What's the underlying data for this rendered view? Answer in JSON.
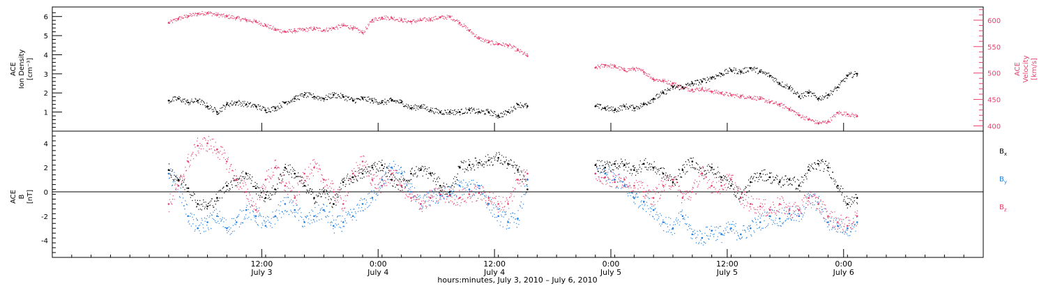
{
  "figure": {
    "x_axis_title": "hours:minutes,  July  3, 2010 – July  6, 2010",
    "x_ticks": [
      {
        "t": 21.6,
        "time": "12:00",
        "date": "July 3"
      },
      {
        "t": 33.6,
        "time": "0:00",
        "date": "July 4"
      },
      {
        "t": 45.6,
        "time": "12:00",
        "date": "July 4"
      },
      {
        "t": 57.6,
        "time": "0:00",
        "date": "July 5"
      },
      {
        "t": 69.6,
        "time": "12:00",
        "date": "July 5"
      },
      {
        "t": 81.6,
        "time": "0:00",
        "date": "July 6"
      }
    ]
  },
  "chart_data": [
    {
      "type": "scatter",
      "panel": "top",
      "ylabel_lines": [
        "ACE",
        "Ion Density",
        "[cm⁻³]"
      ],
      "ylim": [
        0,
        6.5
      ],
      "yticks": [
        1,
        2,
        3,
        4,
        5,
        6
      ],
      "y2label_lines": [
        "ACE",
        "Velocity",
        "[km/s]"
      ],
      "y2lim": [
        390,
        625
      ],
      "y2ticks": [
        400,
        450,
        500,
        550,
        600
      ],
      "xlim": [
        0,
        96
      ],
      "colors": {
        "density": "#000000",
        "velocity": "#e8406e"
      },
      "data_gap": [
        49,
        56
      ],
      "series": [
        {
          "key": "density",
          "axis": "left",
          "x": [
            12,
            13,
            14,
            15,
            16,
            17,
            18,
            19,
            20,
            21,
            22,
            23,
            24,
            25,
            26,
            27,
            28,
            29,
            30,
            31,
            32,
            33,
            34,
            35,
            36,
            37,
            38,
            39,
            40,
            41,
            42,
            43,
            44,
            45,
            46,
            47,
            48,
            49,
            56,
            57,
            58,
            59,
            60,
            61,
            62,
            63,
            64,
            65,
            66,
            67,
            68,
            69,
            70,
            71,
            72,
            73,
            74,
            75,
            76,
            77,
            78,
            79,
            80,
            81,
            82,
            83
          ],
          "y": [
            1.6,
            1.7,
            1.5,
            1.6,
            1.3,
            1.0,
            1.4,
            1.5,
            1.4,
            1.3,
            1.1,
            1.2,
            1.5,
            1.7,
            1.9,
            1.8,
            1.7,
            1.9,
            1.8,
            1.6,
            1.7,
            1.6,
            1.5,
            1.6,
            1.5,
            1.2,
            1.3,
            1.1,
            1.0,
            1.0,
            1.0,
            1.1,
            1.0,
            1.0,
            0.8,
            1.0,
            1.4,
            1.3,
            1.3,
            1.2,
            1.1,
            1.3,
            1.2,
            1.4,
            1.7,
            2.0,
            2.3,
            2.3,
            2.5,
            2.6,
            2.8,
            3.0,
            3.2,
            3.1,
            3.3,
            3.1,
            2.9,
            2.5,
            2.3,
            1.8,
            2.0,
            1.7,
            1.9,
            2.3,
            2.9,
            3.0
          ]
        },
        {
          "key": "velocity",
          "axis": "right",
          "x": [
            12,
            13,
            14,
            15,
            16,
            17,
            18,
            19,
            20,
            21,
            22,
            23,
            24,
            25,
            26,
            27,
            28,
            29,
            30,
            31,
            32,
            33,
            34,
            35,
            36,
            37,
            38,
            39,
            40,
            41,
            42,
            43,
            44,
            45,
            46,
            47,
            48,
            49,
            56,
            57,
            58,
            59,
            60,
            61,
            62,
            63,
            64,
            65,
            66,
            67,
            68,
            69,
            70,
            71,
            72,
            73,
            74,
            75,
            76,
            77,
            78,
            79,
            80,
            81,
            82,
            83
          ],
          "y": [
            595,
            603,
            608,
            612,
            614,
            610,
            607,
            604,
            600,
            597,
            590,
            582,
            578,
            580,
            582,
            584,
            581,
            585,
            590,
            585,
            576,
            600,
            605,
            604,
            600,
            597,
            600,
            602,
            605,
            606,
            595,
            580,
            565,
            558,
            555,
            552,
            543,
            532,
            510,
            515,
            512,
            505,
            508,
            502,
            488,
            485,
            480,
            472,
            468,
            470,
            465,
            462,
            458,
            456,
            454,
            451,
            445,
            440,
            432,
            420,
            412,
            405,
            408,
            425,
            422,
            418
          ]
        }
      ],
      "line_width": 1
    },
    {
      "type": "scatter",
      "panel": "bottom",
      "ylabel_lines": [
        "ACE",
        "B",
        "[nT]"
      ],
      "ylim": [
        -5.4,
        5.0
      ],
      "yticks": [
        -4,
        -2,
        0,
        2,
        4
      ],
      "xlim": [
        0,
        96
      ],
      "zero_line": true,
      "legend_position": "right",
      "data_gap": [
        49,
        56
      ],
      "series": [
        {
          "name": "Bx",
          "label_main": "B",
          "label_sub": "x",
          "color": "#000000",
          "x": [
            12,
            13,
            14,
            15,
            16,
            17,
            18,
            19,
            20,
            21,
            22,
            23,
            24,
            25,
            26,
            27,
            28,
            29,
            30,
            31,
            32,
            33,
            34,
            35,
            36,
            37,
            38,
            39,
            40,
            41,
            42,
            43,
            44,
            45,
            46,
            47,
            48,
            49,
            56,
            57,
            58,
            59,
            60,
            61,
            62,
            63,
            64,
            65,
            66,
            67,
            68,
            69,
            70,
            71,
            72,
            73,
            74,
            75,
            76,
            77,
            78,
            79,
            80,
            81,
            82,
            83
          ],
          "y": [
            1.8,
            1.0,
            0.3,
            -1.0,
            -1.2,
            -0.5,
            0.5,
            1.0,
            1.5,
            0.3,
            -0.5,
            0.2,
            2.0,
            1.5,
            0.5,
            -0.5,
            0.0,
            -1.0,
            0.8,
            1.2,
            1.5,
            2.0,
            2.2,
            1.0,
            0.5,
            1.5,
            1.8,
            1.5,
            0.5,
            0.0,
            2.0,
            2.2,
            2.4,
            2.6,
            2.8,
            2.3,
            1.8,
            0.2,
            2.2,
            2.0,
            2.3,
            2.2,
            1.8,
            2.3,
            2.0,
            1.5,
            0.8,
            1.8,
            2.5,
            1.5,
            2.0,
            1.2,
            0.5,
            -0.5,
            0.8,
            1.5,
            1.2,
            0.8,
            1.0,
            0.5,
            1.8,
            2.3,
            2.0,
            0.5,
            -1.0,
            -0.5
          ]
        },
        {
          "name": "By",
          "label_main": "B",
          "label_sub": "y",
          "color": "#1f7fe0",
          "x": [
            12,
            13,
            14,
            15,
            16,
            17,
            18,
            19,
            20,
            21,
            22,
            23,
            24,
            25,
            26,
            27,
            28,
            29,
            30,
            31,
            32,
            33,
            34,
            35,
            36,
            37,
            38,
            39,
            40,
            41,
            42,
            43,
            44,
            45,
            46,
            47,
            48,
            49,
            56,
            57,
            58,
            59,
            60,
            61,
            62,
            63,
            64,
            65,
            66,
            67,
            68,
            69,
            70,
            71,
            72,
            73,
            74,
            75,
            76,
            77,
            78,
            79,
            80,
            81,
            82,
            83
          ],
          "y": [
            1.5,
            0.5,
            -2.0,
            -3.0,
            -2.5,
            -2.0,
            -3.0,
            -2.5,
            -1.5,
            -2.0,
            -2.8,
            -2.0,
            -1.0,
            -1.5,
            -2.5,
            -2.0,
            -1.5,
            -2.8,
            -2.5,
            -2.0,
            -1.0,
            -0.5,
            1.0,
            2.0,
            1.5,
            0.0,
            -1.0,
            -0.5,
            -0.3,
            -0.2,
            0.5,
            0.2,
            0.5,
            -1.0,
            -2.0,
            -2.5,
            -2.2,
            1.0,
            1.5,
            1.5,
            1.0,
            0.5,
            -0.5,
            -0.8,
            -1.5,
            -2.5,
            -3.0,
            -2.0,
            -3.5,
            -3.8,
            -3.2,
            -3.5,
            -3.0,
            -3.5,
            -3.0,
            -2.5,
            -2.0,
            -2.2,
            -1.8,
            -2.0,
            -0.5,
            -1.0,
            -2.5,
            -2.8,
            -3.0,
            -2.5
          ]
        },
        {
          "name": "Bz",
          "label_main": "B",
          "label_sub": "z",
          "color": "#e8406e",
          "x": [
            12,
            13,
            14,
            15,
            16,
            17,
            18,
            19,
            20,
            21,
            22,
            23,
            24,
            25,
            26,
            27,
            28,
            29,
            30,
            31,
            32,
            33,
            34,
            35,
            36,
            37,
            38,
            39,
            40,
            41,
            42,
            43,
            44,
            45,
            46,
            47,
            48,
            49,
            56,
            57,
            58,
            59,
            60,
            61,
            62,
            63,
            64,
            65,
            66,
            67,
            68,
            69,
            70,
            71,
            72,
            73,
            74,
            75,
            76,
            77,
            78,
            79,
            80,
            81,
            82,
            83
          ],
          "y": [
            -1.0,
            0.5,
            2.5,
            3.8,
            4.0,
            3.5,
            2.5,
            1.0,
            0.0,
            -1.5,
            1.0,
            2.0,
            0.5,
            -0.5,
            1.5,
            2.0,
            1.0,
            0.0,
            -1.0,
            1.5,
            2.5,
            1.0,
            0.5,
            1.5,
            0.5,
            -0.5,
            -1.0,
            -0.5,
            -0.2,
            -0.3,
            -0.5,
            -0.2,
            -0.1,
            -0.5,
            -1.0,
            -1.0,
            1.0,
            1.5,
            1.5,
            1.2,
            0.8,
            1.0,
            0.5,
            0.0,
            -0.5,
            0.5,
            1.0,
            -0.5,
            0.0,
            1.5,
            0.5,
            0.5,
            1.0,
            -0.5,
            -1.0,
            -1.2,
            -1.5,
            -1.0,
            -1.5,
            -1.5,
            -0.5,
            -1.0,
            -2.0,
            -2.5,
            -2.8,
            -2.0
          ]
        }
      ]
    }
  ]
}
